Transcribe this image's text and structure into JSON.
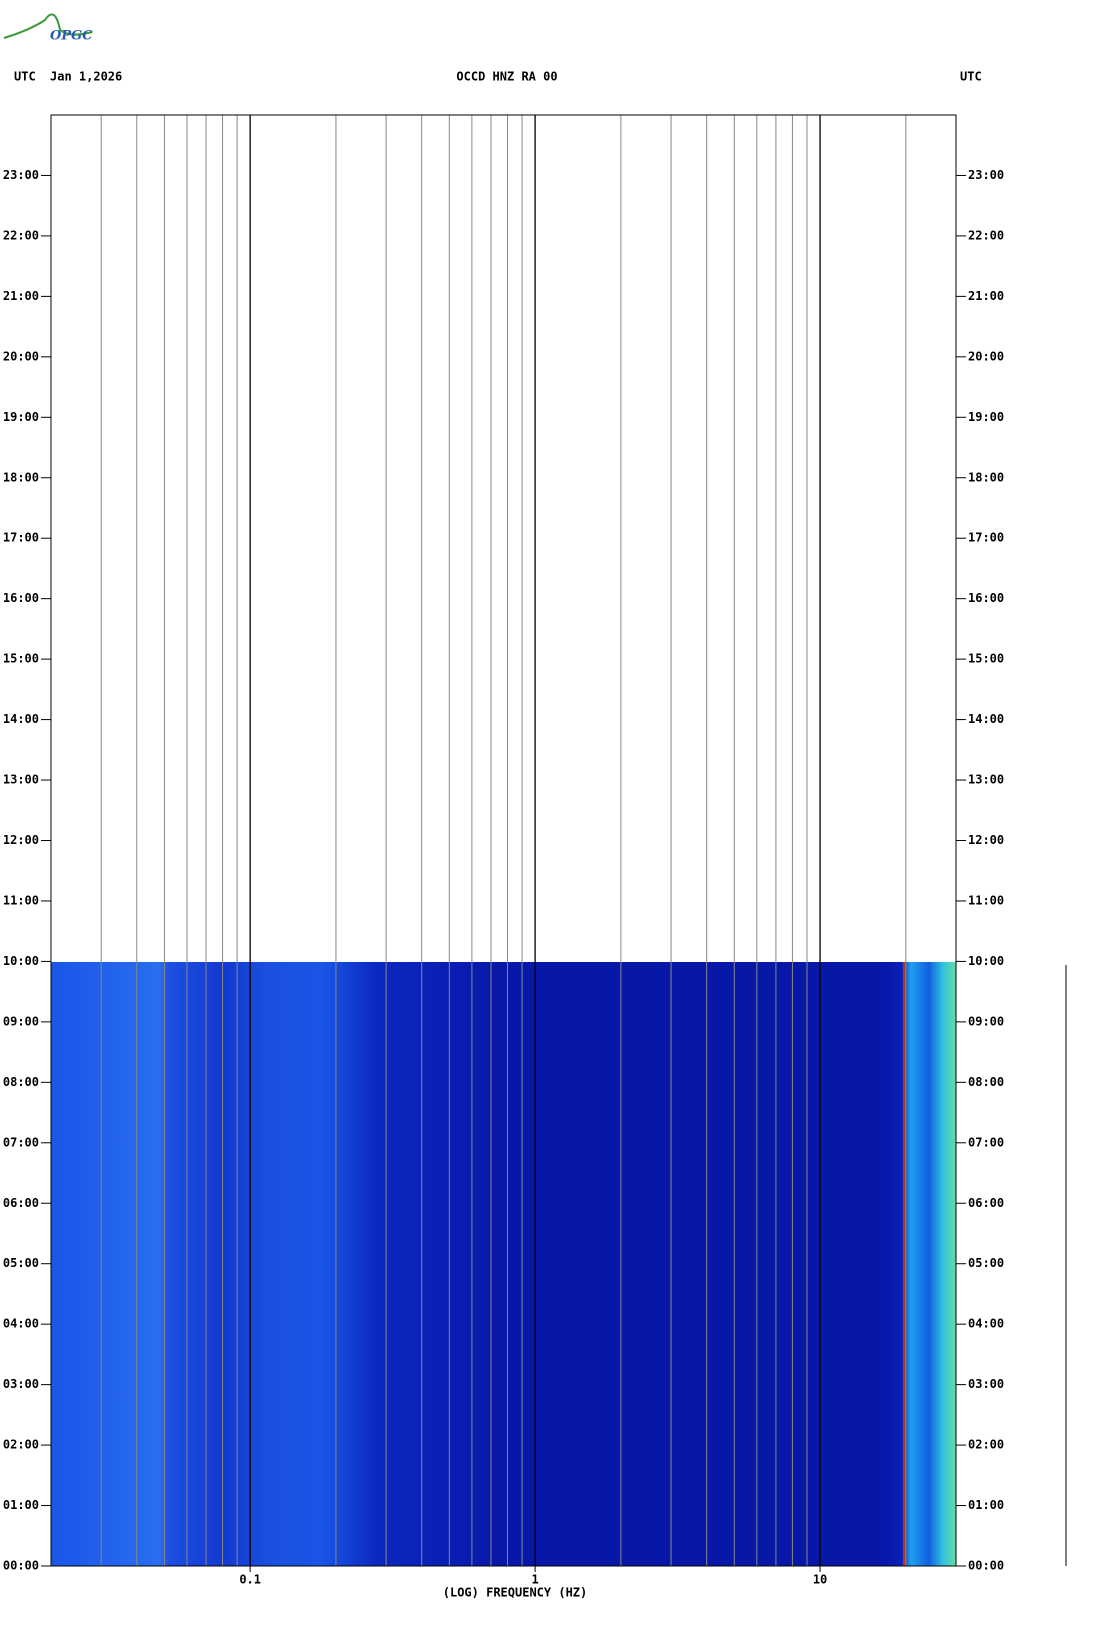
{
  "logo": "OPGC",
  "chart_data": {
    "type": "spectrogram",
    "title": "OCCD HNZ RA 00",
    "date": "Jan 1,2026",
    "left_label": "UTC",
    "right_label": "UTC",
    "xlabel": "(LOG) FREQUENCY (HZ)",
    "xscale": "log",
    "xlim": [
      0.02,
      30
    ],
    "xticks": [
      {
        "value": 0.1,
        "label": "0.1"
      },
      1,
      10
    ],
    "xminor": [
      0.03,
      0.04,
      0.05,
      0.06,
      0.07,
      0.08,
      0.09,
      0.2,
      0.3,
      0.4,
      0.5,
      0.6,
      0.7,
      0.8,
      0.9,
      2,
      3,
      4,
      5,
      6,
      7,
      8,
      9,
      20
    ],
    "ylim": [
      0,
      24
    ],
    "yticks": [
      {
        "value": 0,
        "label": "00:00"
      },
      {
        "value": 1,
        "label": "01:00"
      },
      {
        "value": 2,
        "label": "02:00"
      },
      {
        "value": 3,
        "label": "03:00"
      },
      {
        "value": 4,
        "label": "04:00"
      },
      {
        "value": 5,
        "label": "05:00"
      },
      {
        "value": 6,
        "label": "06:00"
      },
      {
        "value": 7,
        "label": "07:00"
      },
      {
        "value": 8,
        "label": "08:00"
      },
      {
        "value": 9,
        "label": "09:00"
      },
      {
        "value": 10,
        "label": "10:00"
      },
      {
        "value": 11,
        "label": "11:00"
      },
      {
        "value": 12,
        "label": "12:00"
      },
      {
        "value": 13,
        "label": "13:00"
      },
      {
        "value": 14,
        "label": "14:00"
      },
      {
        "value": 15,
        "label": "15:00"
      },
      {
        "value": 16,
        "label": "16:00"
      },
      {
        "value": 17,
        "label": "17:00"
      },
      {
        "value": 18,
        "label": "18:00"
      },
      {
        "value": 19,
        "label": "19:00"
      },
      {
        "value": 20,
        "label": "20:00"
      },
      {
        "value": 21,
        "label": "21:00"
      },
      {
        "value": 22,
        "label": "22:00"
      },
      {
        "value": 23,
        "label": "23:00"
      }
    ]
  }
}
